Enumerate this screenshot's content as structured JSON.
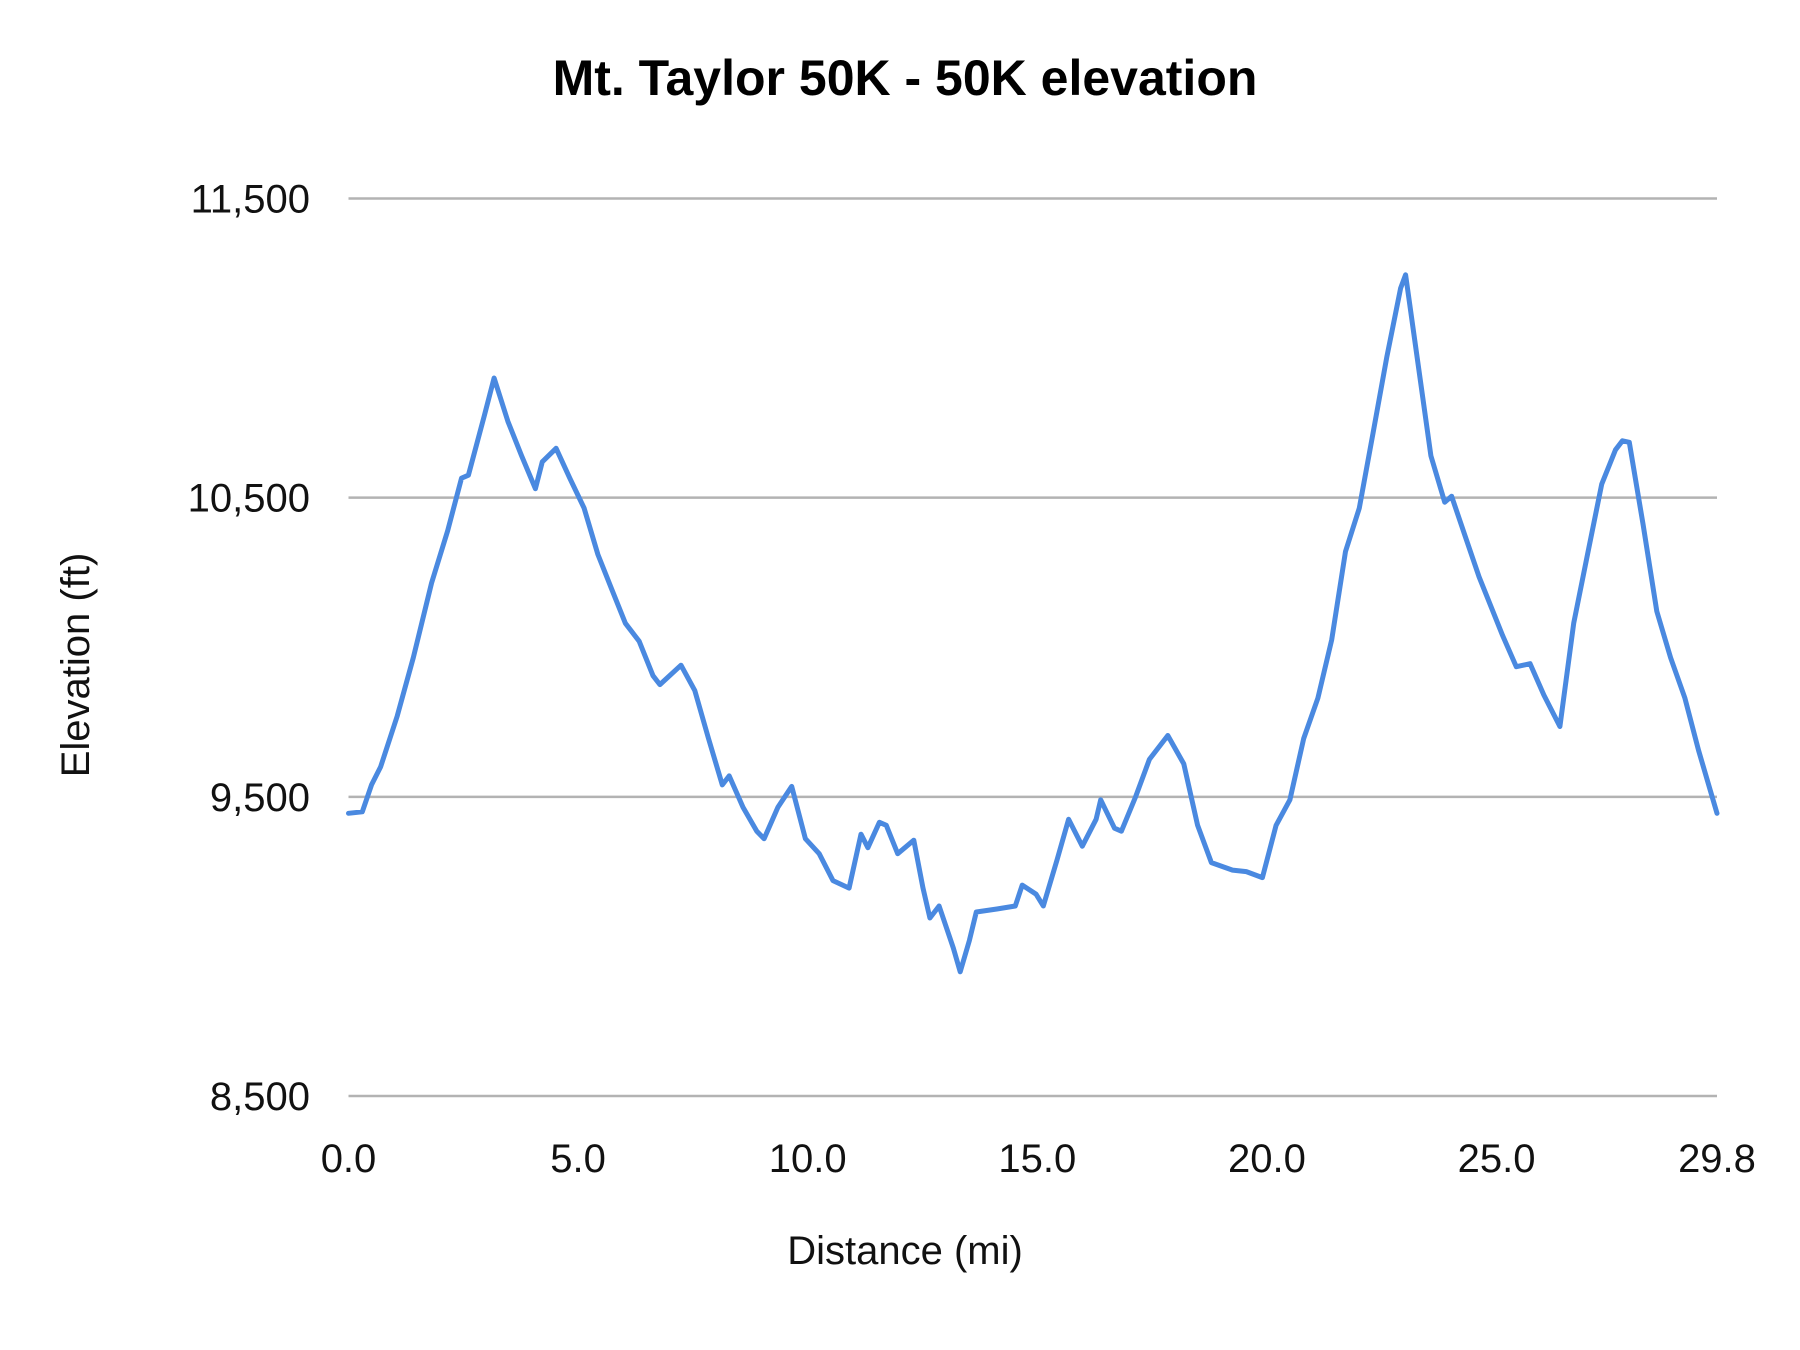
{
  "chart_data": {
    "type": "line",
    "title": "Mt. Taylor 50K - 50K elevation",
    "xlabel": "Distance (mi)",
    "ylabel": "Elevation (ft)",
    "xlim": [
      0,
      29.8
    ],
    "ylim": [
      8500,
      11500
    ],
    "x_ticks": [
      "0.0",
      "5.0",
      "10.0",
      "15.0",
      "20.0",
      "25.0",
      "29.8"
    ],
    "x_tick_values": [
      0,
      5,
      10,
      15,
      20,
      25,
      29.8
    ],
    "y_ticks": [
      "11,500",
      "10,500",
      "9,500",
      "8,500"
    ],
    "y_tick_values": [
      11500,
      10500,
      9500,
      8500
    ],
    "grid": "horizontal",
    "legend": "none",
    "line_color": "#4a89e0",
    "series": [
      {
        "x": [
          0,
          0.3,
          0.5,
          0.7,
          1.06,
          1.41,
          1.81,
          2.16,
          2.46,
          2.61,
          2.96,
          3.17,
          3.47,
          3.77,
          4.07,
          4.22,
          4.52,
          4.82,
          5.13,
          5.43,
          5.73,
          6.03,
          6.33,
          6.63,
          6.78,
          7.24,
          7.54,
          7.84,
          8.14,
          8.29,
          8.59,
          8.89,
          9.05,
          9.35,
          9.65,
          9.95,
          10.25,
          10.55,
          10.9,
          11.16,
          11.31,
          11.56,
          11.71,
          11.96,
          12.31,
          12.51,
          12.66,
          12.86,
          13.17,
          13.32,
          13.52,
          13.67,
          14.12,
          14.52,
          14.67,
          14.97,
          15.13,
          15.43,
          15.68,
          15.98,
          16.28,
          16.38,
          16.68,
          16.83,
          17.14,
          17.44,
          17.84,
          18.19,
          18.49,
          18.79,
          19.25,
          19.55,
          19.9,
          20.2,
          20.5,
          20.8,
          21.11,
          21.41,
          21.71,
          22.01,
          22.31,
          22.61,
          22.91,
          23.02,
          23.27,
          23.57,
          23.87,
          24.02,
          24.32,
          24.62,
          24.92,
          25.13,
          25.43,
          25.73,
          26.03,
          26.38,
          26.68,
          26.98,
          27.29,
          27.59,
          27.74,
          27.89,
          28.19,
          28.49,
          28.79,
          29.1,
          29.4,
          29.8
        ],
        "y": [
          9445,
          9450,
          9540,
          9600,
          9770,
          9965,
          10215,
          10390,
          10565,
          10575,
          10775,
          10900,
          10755,
          10640,
          10530,
          10620,
          10665,
          10565,
          10465,
          10310,
          10195,
          10080,
          10020,
          9905,
          9875,
          9940,
          9855,
          9695,
          9540,
          9570,
          9465,
          9385,
          9360,
          9465,
          9535,
          9360,
          9310,
          9220,
          9195,
          9375,
          9330,
          9415,
          9405,
          9310,
          9355,
          9195,
          9095,
          9135,
          8995,
          8915,
          9020,
          9115,
          9125,
          9135,
          9205,
          9175,
          9135,
          9290,
          9425,
          9335,
          9425,
          9490,
          9395,
          9385,
          9500,
          9625,
          9705,
          9610,
          9405,
          9280,
          9255,
          9250,
          9230,
          9405,
          9490,
          9695,
          9830,
          10025,
          10320,
          10465,
          10715,
          10970,
          11200,
          11245,
          10970,
          10640,
          10485,
          10505,
          10370,
          10235,
          10120,
          10040,
          9935,
          9945,
          9840,
          9735,
          10080,
          10310,
          10545,
          10660,
          10690,
          10685,
          10410,
          10120,
          9965,
          9830,
          9655,
          9445
        ]
      }
    ]
  }
}
